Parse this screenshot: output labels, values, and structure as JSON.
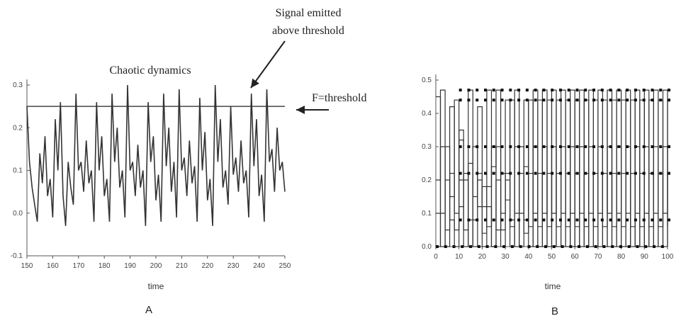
{
  "chart_data": [
    {
      "type": "line",
      "panel_label": "A",
      "title": "Chaotic dynamics",
      "xlabel": "time",
      "ylabel": "",
      "xlim": [
        150,
        250
      ],
      "ylim": [
        -0.1,
        0.3
      ],
      "x_ticks": [
        "150",
        "160",
        "170",
        "180",
        "190",
        "200",
        "210",
        "220",
        "230",
        "240",
        "250"
      ],
      "y_ticks": [
        "-0.1",
        "0.0",
        "0.1",
        "0.2",
        "0.3"
      ],
      "threshold": {
        "value": 0.25,
        "label": "F=threshold"
      },
      "annotation": {
        "line1": "Signal emitted",
        "line2": "above threshold"
      },
      "series": [
        {
          "x": [
            150,
            151,
            152,
            153,
            154,
            155,
            156,
            157,
            158,
            159,
            160,
            161,
            162,
            163,
            164,
            165,
            166,
            167,
            168,
            169,
            170,
            171,
            172,
            173,
            174,
            175,
            176,
            177,
            178,
            179,
            180,
            181,
            182,
            183,
            184,
            185,
            186,
            187,
            188,
            189,
            190,
            191,
            192,
            193,
            194,
            195,
            196,
            197,
            198,
            199,
            200,
            201,
            202,
            203,
            204,
            205,
            206,
            207,
            208,
            209,
            210,
            211,
            212,
            213,
            214,
            215,
            216,
            217,
            218,
            219,
            220,
            221,
            222,
            223,
            224,
            225,
            226,
            227,
            228,
            229,
            230,
            231,
            232,
            233,
            234,
            235,
            236,
            237,
            238,
            239,
            240,
            241,
            242,
            243,
            244,
            245,
            246,
            247,
            248,
            249,
            250
          ],
          "values": [
            0.25,
            0.12,
            0.06,
            0.02,
            -0.02,
            0.14,
            0.07,
            0.18,
            0.04,
            0.08,
            -0.01,
            0.22,
            0.1,
            0.26,
            0.04,
            -0.03,
            0.12,
            0.06,
            0.02,
            0.28,
            0.1,
            0.12,
            0.05,
            0.17,
            0.07,
            0.1,
            -0.02,
            0.26,
            0.1,
            0.18,
            0.04,
            0.08,
            -0.02,
            0.28,
            0.12,
            0.2,
            0.06,
            0.1,
            -0.01,
            0.3,
            0.1,
            0.12,
            0.04,
            0.16,
            0.06,
            0.1,
            -0.03,
            0.26,
            0.12,
            0.18,
            0.03,
            0.09,
            -0.02,
            0.28,
            0.11,
            0.2,
            0.05,
            0.12,
            -0.01,
            0.29,
            0.1,
            0.13,
            0.04,
            0.17,
            0.07,
            0.11,
            -0.02,
            0.27,
            0.1,
            0.19,
            0.03,
            0.08,
            -0.03,
            0.3,
            0.12,
            0.22,
            0.06,
            0.1,
            0.02,
            0.25,
            0.09,
            0.13,
            0.05,
            0.17,
            0.07,
            0.1,
            -0.01,
            0.28,
            0.11,
            0.22,
            0.04,
            0.09,
            -0.02,
            0.29,
            0.12,
            0.15,
            0.05,
            0.2,
            0.1,
            0.12,
            0.05
          ]
        }
      ]
    },
    {
      "type": "line",
      "panel_label": "B",
      "title": "",
      "xlabel": "time",
      "ylabel": "",
      "xlim": [
        0,
        100
      ],
      "ylim": [
        0.0,
        0.5
      ],
      "x_ticks": [
        "0",
        "10",
        "20",
        "30",
        "40",
        "50",
        "60",
        "70",
        "80",
        "90",
        "100"
      ],
      "y_ticks": [
        "0.0",
        "0.1",
        "0.2",
        "0.3",
        "0.4",
        "0.5"
      ],
      "series": [
        {
          "x": [
            0,
            2,
            4,
            6,
            8,
            10,
            12,
            14,
            16,
            18,
            20,
            22,
            24,
            26,
            28,
            30,
            32,
            34,
            36,
            38,
            40,
            42,
            44,
            46,
            48,
            50,
            52,
            54,
            56,
            58,
            60,
            62,
            64,
            66,
            68,
            70,
            72,
            74,
            76,
            78,
            80,
            82,
            84,
            86,
            88,
            90,
            92,
            94,
            96,
            98,
            100
          ],
          "values": [
            0.0,
            0.47,
            0.0,
            0.42,
            0.05,
            0.35,
            0.0,
            0.47,
            0.0,
            0.2,
            0.0,
            0.47,
            0.0,
            0.47,
            0.0,
            0.44,
            0.0,
            0.47,
            0.0,
            0.44,
            0.0,
            0.47,
            0.0,
            0.47,
            0.0,
            0.47,
            0.0,
            0.47,
            0.0,
            0.47,
            0.0,
            0.47,
            0.0,
            0.47,
            0.0,
            0.47,
            0.0,
            0.47,
            0.0,
            0.47,
            0.0,
            0.47,
            0.0,
            0.47,
            0.0,
            0.47,
            0.0,
            0.47,
            0.0,
            0.47,
            0.0
          ]
        },
        {
          "x": [
            0,
            2,
            4,
            6,
            8,
            10,
            12,
            14,
            16,
            18,
            20,
            22,
            24,
            26,
            28,
            30,
            32,
            34,
            36,
            38,
            40,
            42,
            44,
            46,
            48,
            50,
            52,
            54,
            56,
            58,
            60,
            62,
            64,
            66,
            68,
            70,
            72,
            74,
            76,
            78,
            80,
            82,
            84,
            86,
            88,
            90,
            92,
            94,
            96,
            98,
            100
          ],
          "values": [
            0.45,
            0.1,
            0.3,
            0.15,
            0.44,
            0.2,
            0.05,
            0.25,
            0.15,
            0.42,
            0.12,
            0.18,
            0.3,
            0.05,
            0.22,
            0.14,
            0.44,
            0.1,
            0.3,
            0.08,
            0.44,
            0.1,
            0.44,
            0.1,
            0.44,
            0.1,
            0.44,
            0.1,
            0.44,
            0.1,
            0.44,
            0.1,
            0.44,
            0.1,
            0.44,
            0.1,
            0.44,
            0.1,
            0.44,
            0.1,
            0.44,
            0.1,
            0.44,
            0.1,
            0.44,
            0.1,
            0.44,
            0.1,
            0.44,
            0.1,
            0.44
          ]
        },
        {
          "x": [
            0,
            2,
            4,
            6,
            8,
            10,
            12,
            14,
            16,
            18,
            20,
            22,
            24,
            26,
            28,
            30,
            32,
            34,
            36,
            38,
            40,
            42,
            44,
            46,
            48,
            50,
            52,
            54,
            56,
            58,
            60,
            62,
            64,
            66,
            68,
            70,
            72,
            74,
            76,
            78,
            80,
            82,
            84,
            86,
            88,
            90,
            92,
            94,
            96,
            98,
            100
          ],
          "values": [
            0.2,
            0.3,
            0.05,
            0.22,
            0.1,
            0.32,
            0.2,
            0.08,
            0.3,
            0.12,
            0.18,
            0.06,
            0.24,
            0.3,
            0.1,
            0.2,
            0.06,
            0.3,
            0.1,
            0.24,
            0.06,
            0.3,
            0.06,
            0.3,
            0.06,
            0.3,
            0.06,
            0.3,
            0.06,
            0.3,
            0.06,
            0.3,
            0.06,
            0.3,
            0.06,
            0.3,
            0.06,
            0.3,
            0.06,
            0.3,
            0.06,
            0.3,
            0.06,
            0.3,
            0.06,
            0.3,
            0.06,
            0.3,
            0.06,
            0.3,
            0.06
          ]
        },
        {
          "x": [
            0,
            2,
            4,
            6,
            8,
            10,
            12,
            14,
            16,
            18,
            20,
            22,
            24,
            26,
            28,
            30,
            32,
            34,
            36,
            38,
            40,
            42,
            44,
            46,
            48,
            50,
            52,
            54,
            56,
            58,
            60,
            62,
            64,
            66,
            68,
            70,
            72,
            74,
            76,
            78,
            80,
            82,
            84,
            86,
            88,
            90,
            92,
            94,
            96,
            98,
            100
          ],
          "values": [
            0.1,
            0.0,
            0.2,
            0.08,
            0.0,
            0.12,
            0.22,
            0.0,
            0.08,
            0.22,
            0.04,
            0.12,
            0.0,
            0.2,
            0.05,
            0.22,
            0.08,
            0.0,
            0.22,
            0.04,
            0.22,
            0.0,
            0.22,
            0.0,
            0.22,
            0.0,
            0.22,
            0.0,
            0.22,
            0.0,
            0.22,
            0.0,
            0.22,
            0.0,
            0.22,
            0.0,
            0.22,
            0.0,
            0.22,
            0.0,
            0.22,
            0.0,
            0.22,
            0.0,
            0.22,
            0.0,
            0.22,
            0.0,
            0.22,
            0.0,
            0.22
          ]
        }
      ],
      "plateau_levels": [
        0.0,
        0.08,
        0.22,
        0.3,
        0.44,
        0.47
      ]
    }
  ]
}
